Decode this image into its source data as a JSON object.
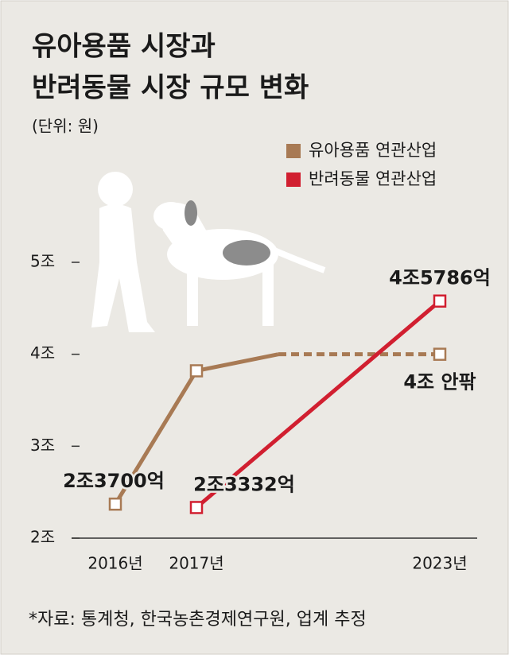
{
  "chart_data": {
    "type": "line",
    "title": [
      "유아용품 시장과",
      "반려동물 시장 규모 변화"
    ],
    "subtitle": "(단위: 원)",
    "source": "*자료: 통계청, 한국농촌경제연구원, 업계 추정",
    "ylim": [
      2,
      5
    ],
    "yticks": [
      {
        "value": 5,
        "label": "5조"
      },
      {
        "value": 4,
        "label": "4조"
      },
      {
        "value": 3,
        "label": "3조"
      },
      {
        "value": 2,
        "label": "2조"
      }
    ],
    "xticks": [
      {
        "value": 2016,
        "label": "2016년"
      },
      {
        "value": 2017,
        "label": "2017년"
      },
      {
        "value": 2023,
        "label": "2023년"
      }
    ],
    "series": [
      {
        "name": "유아용품 연관산업",
        "color": "#a87a54",
        "x": [
          2016,
          2017,
          2018,
          2023
        ],
        "values": [
          2.37,
          3.82,
          4.0,
          4.0
        ],
        "value_labels": [
          "2조3700억",
          null,
          null,
          "4조 안팎"
        ],
        "dashed_from": 2
      },
      {
        "name": "반려동물 연관산업",
        "color": "#d11f30",
        "x": [
          2017,
          2023
        ],
        "values": [
          2.3332,
          4.5786
        ],
        "value_labels": [
          "2조3332억",
          "4조5786억"
        ]
      }
    ]
  }
}
